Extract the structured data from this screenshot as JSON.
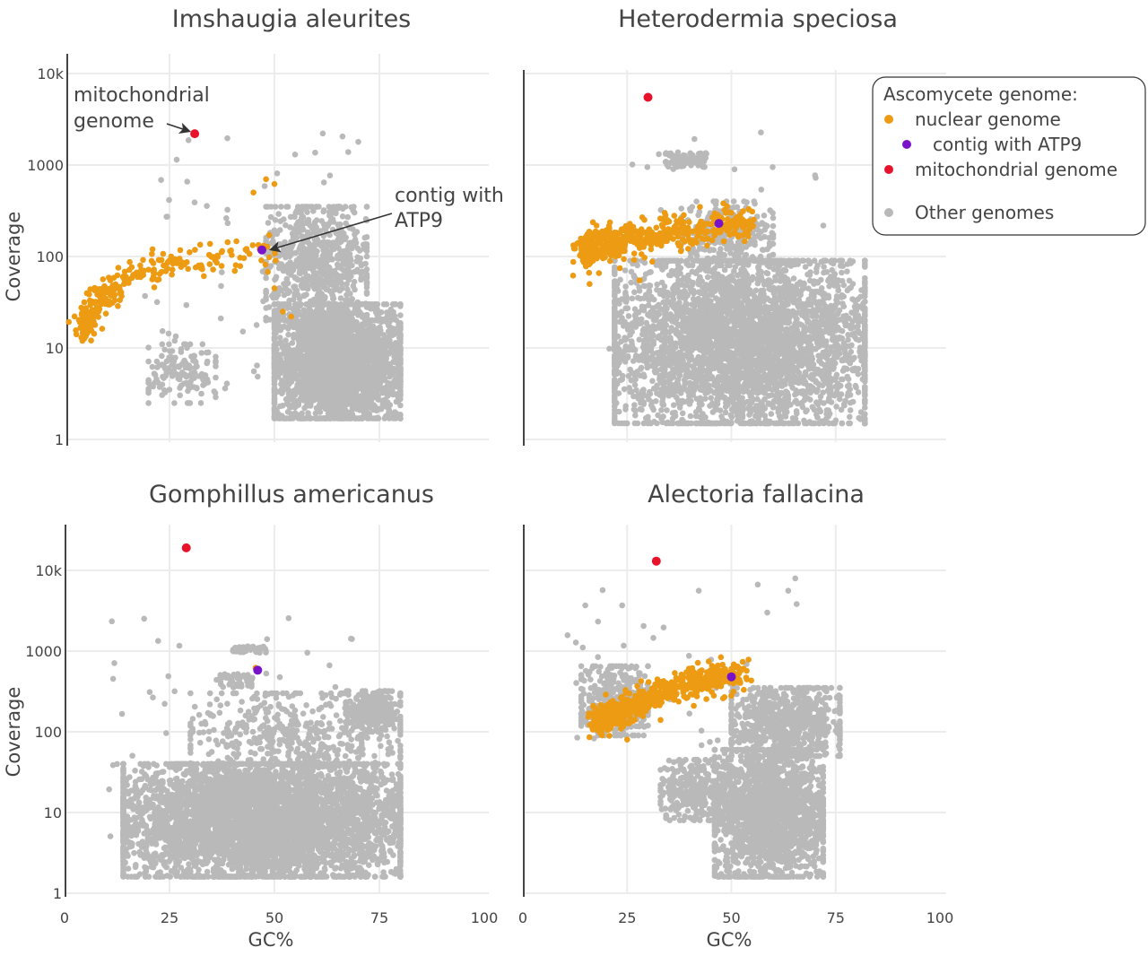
{
  "colors": {
    "nuclear": "#ec9b13",
    "atp9": "#7a12c9",
    "mito": "#e8132b",
    "other": "#b9b9b9",
    "grid": "#ececec",
    "axis": "#444444"
  },
  "legend": {
    "title": "Ascomycete genome:",
    "items": [
      {
        "label": "nuclear genome",
        "color_key": "nuclear"
      },
      {
        "label": "contig with ATP9",
        "color_key": "atp9"
      },
      {
        "label": "mitochondrial genome",
        "color_key": "mito"
      },
      {
        "label": "Other genomes",
        "color_key": "other"
      }
    ],
    "placement": "top-right"
  },
  "axes": {
    "xlabel": "GC%",
    "ylabel": "Coverage",
    "xticks": [
      "0",
      "25",
      "50",
      "75",
      "100"
    ],
    "yticks": [
      "1",
      "10",
      "100",
      "1000",
      "10k"
    ]
  },
  "annotations": {
    "mito_line1": "mitochondrial",
    "mito_line2": "genome",
    "atp9_line1": "contig with",
    "atp9_line2": "ATP9"
  },
  "chart_data": [
    {
      "type": "scatter",
      "title": "Imshaugia aleurites",
      "xlim": [
        0,
        100
      ],
      "ylim": [
        1,
        10000
      ],
      "yscale": "log",
      "grid": true,
      "mito": [
        31,
        2200
      ],
      "atp9": [
        47,
        118
      ],
      "nuclear_trend": [
        [
          4,
          16
        ],
        [
          8,
          35
        ],
        [
          14,
          50
        ],
        [
          22,
          75
        ],
        [
          32,
          95
        ],
        [
          42,
          110
        ],
        [
          50,
          120
        ]
      ],
      "nuclear_n": 260,
      "nuclear_outliers": [
        [
          45,
          500
        ],
        [
          48,
          700
        ],
        [
          50,
          620
        ],
        [
          50,
          45
        ],
        [
          52,
          25
        ],
        [
          54,
          22
        ]
      ],
      "other_clusters": [
        {
          "gc": [
            50,
            80
          ],
          "coverage": [
            1.7,
            30
          ],
          "n": 2600
        },
        {
          "gc": [
            48,
            72
          ],
          "coverage": [
            20,
            350
          ],
          "n": 700
        },
        {
          "gc": [
            20,
            36
          ],
          "coverage": [
            2.5,
            11
          ],
          "n": 140
        },
        {
          "gc": [
            18,
            70
          ],
          "coverage": [
            2,
            2800
          ],
          "n": 60
        }
      ]
    },
    {
      "type": "scatter",
      "title": "Heterodermia speciosa",
      "xlim": [
        0,
        100
      ],
      "ylim": [
        1,
        10000
      ],
      "yscale": "log",
      "grid": true,
      "mito": [
        30,
        5500
      ],
      "atp9": [
        47,
        230
      ],
      "nuclear_trend": [
        [
          15,
          110
        ],
        [
          20,
          140
        ],
        [
          26,
          160
        ],
        [
          34,
          175
        ],
        [
          42,
          200
        ],
        [
          50,
          225
        ],
        [
          54,
          230
        ]
      ],
      "nuclear_n": 520,
      "nuclear_outliers": [
        [
          16,
          50
        ],
        [
          28,
          55
        ],
        [
          34,
          300
        ],
        [
          50,
          300
        ],
        [
          55,
          310
        ]
      ],
      "other_clusters": [
        {
          "gc": [
            22,
            82
          ],
          "coverage": [
            1.5,
            90
          ],
          "n": 3800
        },
        {
          "gc": [
            34,
            44
          ],
          "coverage": [
            950,
            1400
          ],
          "n": 80
        },
        {
          "gc": [
            38,
            60
          ],
          "coverage": [
            80,
            400
          ],
          "n": 250
        },
        {
          "gc": [
            20,
            80
          ],
          "coverage": [
            2,
            3500
          ],
          "n": 50
        }
      ]
    },
    {
      "type": "scatter",
      "title": "Gomphillus americanus",
      "xlim": [
        0,
        100
      ],
      "ylim": [
        1,
        30000
      ],
      "yscale": "log",
      "grid": true,
      "mito": [
        29,
        19000
      ],
      "atp9": [
        46,
        580
      ],
      "nuclear_trend": [
        [
          46,
          600
        ]
      ],
      "nuclear_n": 1,
      "nuclear_outliers": [
        [
          45.5,
          620
        ]
      ],
      "other_clusters": [
        {
          "gc": [
            14,
            80
          ],
          "coverage": [
            1.6,
            40
          ],
          "n": 4500
        },
        {
          "gc": [
            30,
            80
          ],
          "coverage": [
            20,
            300
          ],
          "n": 500
        },
        {
          "gc": [
            67,
            80
          ],
          "coverage": [
            100,
            320
          ],
          "n": 250
        },
        {
          "gc": [
            40,
            48
          ],
          "coverage": [
            950,
            1150
          ],
          "n": 45
        },
        {
          "gc": [
            37,
            45
          ],
          "coverage": [
            350,
            520
          ],
          "n": 50
        },
        {
          "gc": [
            10,
            70
          ],
          "coverage": [
            3,
            2800
          ],
          "n": 60
        }
      ]
    },
    {
      "type": "scatter",
      "title": "Alectoria fallacina",
      "xlim": [
        0,
        100
      ],
      "ylim": [
        1,
        30000
      ],
      "yscale": "log",
      "grid": true,
      "mito": [
        32,
        13000
      ],
      "atp9": [
        50,
        480
      ],
      "nuclear_trend": [
        [
          18,
          130
        ],
        [
          24,
          180
        ],
        [
          30,
          260
        ],
        [
          36,
          340
        ],
        [
          42,
          420
        ],
        [
          48,
          480
        ],
        [
          53,
          510
        ]
      ],
      "nuclear_n": 600,
      "nuclear_outliers": [
        [
          25,
          80
        ],
        [
          33,
          140
        ],
        [
          41,
          210
        ],
        [
          48,
          260
        ],
        [
          50,
          280
        ]
      ],
      "other_clusters": [
        {
          "gc": [
            14,
            30
          ],
          "coverage": [
            90,
            650
          ],
          "n": 350
        },
        {
          "gc": [
            46,
            72
          ],
          "coverage": [
            1.6,
            60
          ],
          "n": 1800
        },
        {
          "gc": [
            50,
            76
          ],
          "coverage": [
            50,
            350
          ],
          "n": 700
        },
        {
          "gc": [
            33,
            50
          ],
          "coverage": [
            8,
            45
          ],
          "n": 300
        },
        {
          "gc": [
            10,
            66
          ],
          "coverage": [
            40,
            9500
          ],
          "n": 40
        }
      ]
    }
  ]
}
